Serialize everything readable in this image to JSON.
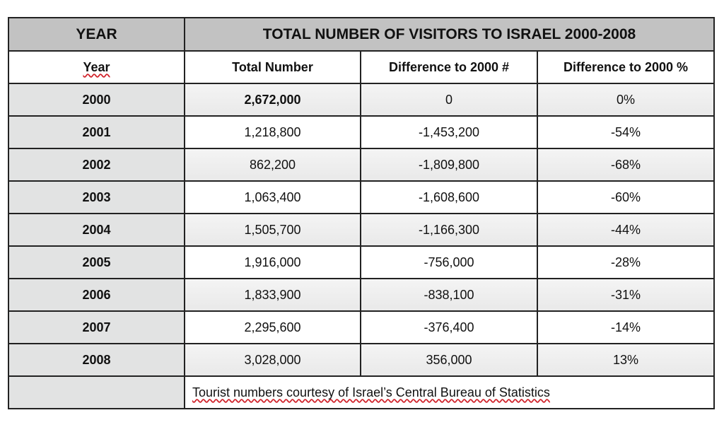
{
  "title_row": {
    "year_label": "YEAR",
    "title": "TOTAL NUMBER OF VISITORS TO ISRAEL 2000-2008"
  },
  "columns": [
    "Year",
    "Total Number",
    "Difference to 2000 #",
    "Difference to 2000 %"
  ],
  "rows": [
    {
      "year": "2000",
      "total": "2,672,000",
      "diff": "0",
      "pct": "0%"
    },
    {
      "year": "2001",
      "total": "1,218,800",
      "diff": "-1,453,200",
      "pct": "-54%"
    },
    {
      "year": "2002",
      "total": "862,200",
      "diff": "-1,809,800",
      "pct": "-68%"
    },
    {
      "year": "2003",
      "total": "1,063,400",
      "diff": "-1,608,600",
      "pct": "-60%"
    },
    {
      "year": "2004",
      "total": "1,505,700",
      "diff": "-1,166,300",
      "pct": "-44%"
    },
    {
      "year": "2005",
      "total": "1,916,000",
      "diff": "-756,000",
      "pct": "-28%"
    },
    {
      "year": "2006",
      "total": "1,833,900",
      "diff": "-838,100",
      "pct": "-31%"
    },
    {
      "year": "2007",
      "total": "2,295,600",
      "diff": "-376,400",
      "pct": "-14%"
    },
    {
      "year": "2008",
      "total": "3,028,000",
      "diff": "356,000",
      "pct": "13%"
    }
  ],
  "footer": {
    "note": "Tourist numbers courtesy of Israel’s Central Bureau of Statistics"
  }
}
